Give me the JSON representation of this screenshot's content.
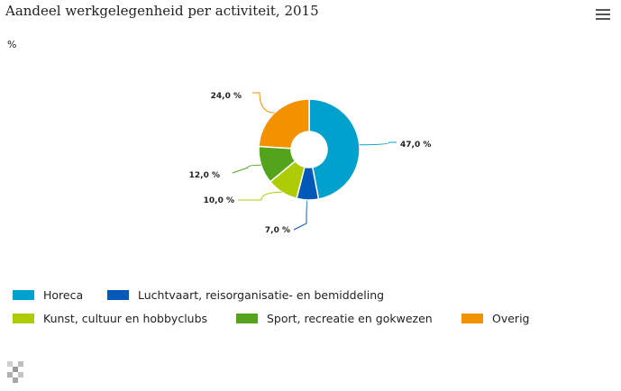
{
  "title": "Aandeel werkgelegenheid per activiteit, 2015",
  "unit_label": "%",
  "icons": {
    "menu": "hamburger-menu-icon",
    "logo": "cbs-logo-icon"
  },
  "chart_data": {
    "type": "pie",
    "variant": "donut",
    "title": "Aandeel werkgelegenheid per activiteit, 2015",
    "unit": "%",
    "slices": [
      {
        "label": "Horeca",
        "value": 47.0,
        "data_label": "47,0 %",
        "color": "#00a1cd"
      },
      {
        "label": "Luchtvaart, reisorganisatie- en bemiddeling",
        "value": 7.0,
        "data_label": "7,0 %",
        "color": "#0058b8"
      },
      {
        "label": "Kunst, cultuur en hobbyclubs",
        "value": 10.0,
        "data_label": "10,0 %",
        "color": "#afcb05"
      },
      {
        "label": "Sport, recreatie en gokwezen",
        "value": 12.0,
        "data_label": "12,0 %",
        "color": "#53a31d"
      },
      {
        "label": "Overig",
        "value": 24.0,
        "data_label": "24,0 %",
        "color": "#f39200"
      }
    ],
    "legend_position": "bottom-left"
  }
}
